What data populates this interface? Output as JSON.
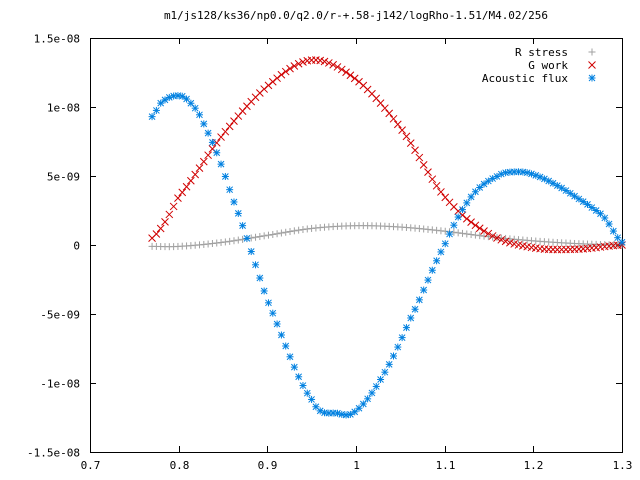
{
  "chart_data": {
    "type": "scatter",
    "title": "m1/js128/ks36/np0.0/q2.0/r-+.58-j142/logRho-1.51/M4.02/256",
    "xlabel": "",
    "ylabel": "",
    "xlim": [
      0.7,
      1.3
    ],
    "ylim": [
      -1.5e-08,
      1.5e-08
    ],
    "grid": false,
    "legend_position": "top-right",
    "x_ticks": [
      "0.7",
      "0.8",
      "0.9",
      "1",
      "1.1",
      "1.2",
      "1.3"
    ],
    "y_ticks": [
      "-1.5e-08",
      "-1e-08",
      "-5e-09",
      "0",
      "5e-09",
      "1e-08",
      "1.5e-08"
    ],
    "x_range": [
      0.77,
      1.3
    ],
    "points_per_series": 110,
    "series": [
      {
        "name": "R stress",
        "color": "#a0a0a0",
        "marker": "plus",
        "control_x": [
          0.77,
          0.8,
          0.85,
          0.9,
          0.95,
          1.0,
          1.05,
          1.1,
          1.15,
          1.2,
          1.25,
          1.3
        ],
        "control_y": [
          -1e-10,
          -1e-10,
          2e-10,
          7e-10,
          1.2e-09,
          1.4e-09,
          1.3e-09,
          1e-09,
          6e-10,
          3e-10,
          1e-10,
          0.0
        ]
      },
      {
        "name": "G work",
        "color": "#d00000",
        "marker": "cross",
        "control_x": [
          0.77,
          0.8,
          0.85,
          0.9,
          0.95,
          1.0,
          1.05,
          1.1,
          1.15,
          1.2,
          1.25,
          1.3
        ],
        "control_y": [
          5e-10,
          3.5e-09,
          8e-09,
          1.15e-08,
          1.34e-08,
          1.2e-08,
          8.5e-09,
          3.5e-09,
          8e-10,
          -2e-10,
          -3e-10,
          0.0
        ]
      },
      {
        "name": "Acoustic flux",
        "color": "#0080e0",
        "marker": "star",
        "control_x": [
          0.77,
          0.78,
          0.795,
          0.81,
          0.83,
          0.86,
          0.9,
          0.95,
          0.98,
          1.0,
          1.03,
          1.06,
          1.1,
          1.13,
          1.16,
          1.18,
          1.2,
          1.23,
          1.26,
          1.28,
          1.3
        ],
        "control_y": [
          9.3e-09,
          1.03e-08,
          1.08e-08,
          1.05e-08,
          8.5e-09,
          3.5e-09,
          -4e-09,
          -1.12e-08,
          -1.22e-08,
          -1.2e-08,
          -9.5e-09,
          -5.5e-09,
          0.0,
          3.5e-09,
          5e-09,
          5.3e-09,
          5.1e-09,
          4.2e-09,
          3e-09,
          2e-09,
          2e-10
        ]
      }
    ]
  }
}
